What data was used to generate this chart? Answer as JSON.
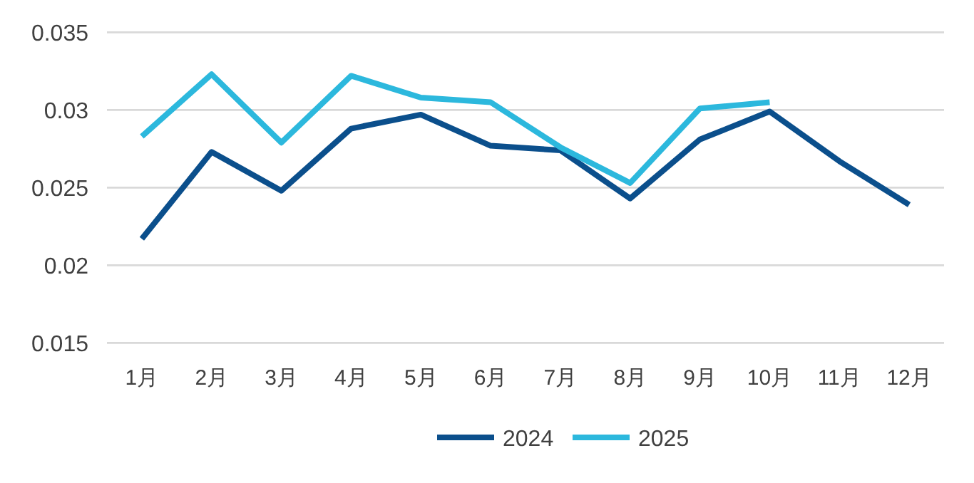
{
  "chart_data": {
    "type": "line",
    "categories": [
      "1月",
      "2月",
      "3月",
      "4月",
      "5月",
      "6月",
      "7月",
      "8月",
      "9月",
      "10月",
      "11月",
      "12月"
    ],
    "series": [
      {
        "name": "2024",
        "color": "#0b4f8c",
        "values": [
          0.0217,
          0.0273,
          0.0248,
          0.0288,
          0.0297,
          0.0277,
          0.0274,
          0.0243,
          0.0281,
          0.0299,
          0.0267,
          0.0239
        ]
      },
      {
        "name": "2025",
        "color": "#2cb8dd",
        "values": [
          0.0283,
          0.0323,
          0.0279,
          0.0322,
          0.0308,
          0.0305,
          0.0276,
          0.0253,
          0.0301,
          0.0305,
          null,
          null
        ]
      }
    ],
    "ylim": [
      0.015,
      0.035
    ],
    "yticks": [
      0.015,
      0.02,
      0.025,
      0.03,
      0.035
    ],
    "grid": "y",
    "legend": "bottom",
    "marker": "none",
    "line_style": "solid"
  }
}
